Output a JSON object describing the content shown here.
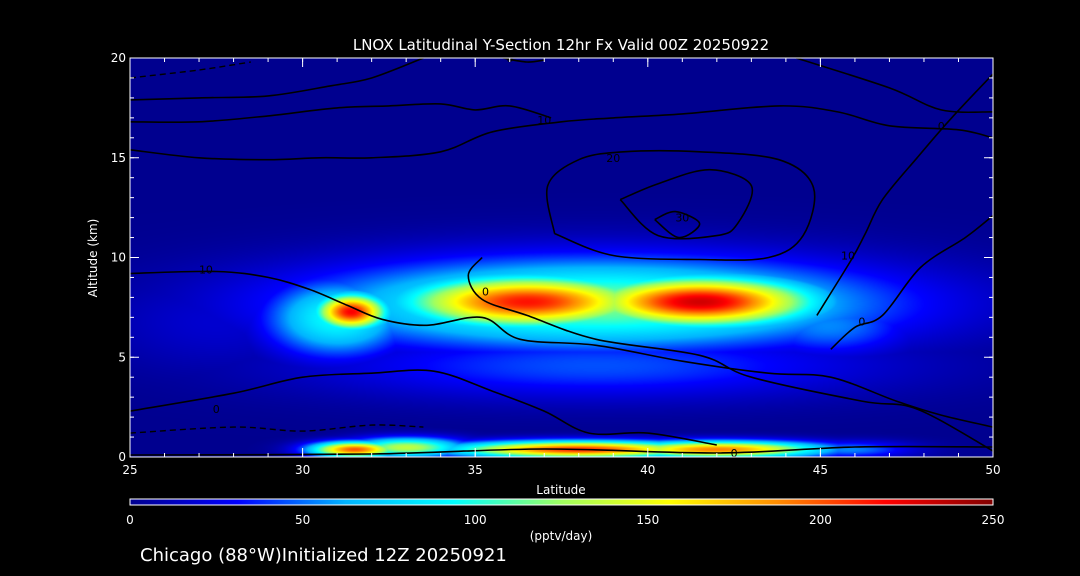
{
  "chart_data": {
    "type": "heatmap",
    "title": "LNOX Latitudinal Y-Section 12hr  Fx Valid 00Z 20250922",
    "xlabel": "Latitude",
    "ylabel": "Altitude (km)",
    "xlim": [
      25,
      50
    ],
    "ylim": [
      0,
      20
    ],
    "x_ticks": [
      25,
      30,
      35,
      40,
      45,
      50
    ],
    "x_tick_labels": [
      "25",
      "30",
      "35",
      "40",
      "45",
      "50"
    ],
    "y_ticks": [
      0,
      5,
      10,
      15,
      20
    ],
    "y_tick_labels": [
      "0",
      "5",
      "10",
      "15",
      "20"
    ],
    "colorbar": {
      "min": 0,
      "max": 250,
      "ticks": [
        0,
        50,
        100,
        150,
        200,
        250
      ],
      "tick_labels": [
        "0",
        "50",
        "100",
        "150",
        "200",
        "250"
      ],
      "units": "(pptv/day)",
      "colormap": [
        "#00008f",
        "#0000ff",
        "#00b4ff",
        "#00ffff",
        "#a0ff60",
        "#ffff00",
        "#ff8c00",
        "#ff0000",
        "#800000"
      ]
    },
    "background_color": "#00008f",
    "blobs": [
      {
        "lat": 31.4,
        "alt": 7.3,
        "slat": 0.75,
        "salt": 0.65,
        "value": 220
      },
      {
        "lat": 31.0,
        "alt": 7.0,
        "slat": 1.5,
        "salt": 1.4,
        "value": 95
      },
      {
        "lat": 36.5,
        "alt": 7.8,
        "slat": 2.6,
        "salt": 0.95,
        "value": 215
      },
      {
        "lat": 41.5,
        "alt": 7.8,
        "slat": 2.4,
        "salt": 0.9,
        "value": 230
      },
      {
        "lat": 38.5,
        "alt": 7.7,
        "slat": 5.8,
        "salt": 1.6,
        "value": 120
      },
      {
        "lat": 45.2,
        "alt": 6.6,
        "slat": 1.8,
        "salt": 1.1,
        "value": 55
      },
      {
        "lat": 38.5,
        "alt": 4.6,
        "slat": 5.8,
        "salt": 1.2,
        "value": 45
      },
      {
        "lat": 27.5,
        "alt": 6.8,
        "slat": 2.5,
        "salt": 1.8,
        "value": 18
      },
      {
        "lat": 33.0,
        "alt": 0.5,
        "slat": 1.2,
        "salt": 0.35,
        "value": 135
      },
      {
        "lat": 31.5,
        "alt": 0.4,
        "slat": 0.9,
        "salt": 0.28,
        "value": 200
      },
      {
        "lat": 38.0,
        "alt": 0.4,
        "slat": 2.6,
        "salt": 0.3,
        "value": 210
      },
      {
        "lat": 42.0,
        "alt": 0.4,
        "slat": 2.2,
        "salt": 0.3,
        "value": 190
      },
      {
        "lat": 45.8,
        "alt": 0.4,
        "slat": 1.3,
        "salt": 0.3,
        "value": 55
      }
    ],
    "contours": [
      {
        "label": "0",
        "label_at": [
          35.3,
          8.3
        ],
        "points": [
          [
            35.2,
            10.0
          ],
          [
            34.8,
            9.1
          ],
          [
            35.2,
            7.9
          ],
          [
            36.5,
            7.1
          ],
          [
            38.5,
            5.9
          ],
          [
            41.5,
            5.1
          ],
          [
            43.0,
            4.0
          ],
          [
            46.2,
            2.8
          ],
          [
            47.8,
            2.4
          ],
          [
            50,
            0.3
          ]
        ]
      },
      {
        "label": "0",
        "label_at": [
          42.5,
          0.2
        ],
        "points": [
          [
            25,
            0.1
          ],
          [
            32,
            0.15
          ],
          [
            37,
            0.4
          ],
          [
            42,
            0.2
          ],
          [
            46,
            0.5
          ],
          [
            50,
            0.5
          ]
        ]
      },
      {
        "label": "0",
        "label_at": [
          27.5,
          2.4
        ],
        "points": [
          [
            25,
            2.3
          ],
          [
            28,
            3.2
          ],
          [
            30,
            4.0
          ],
          [
            32,
            4.2
          ],
          [
            33.8,
            4.3
          ],
          [
            35.5,
            3.3
          ],
          [
            37.0,
            2.3
          ],
          [
            38.3,
            1.2
          ],
          [
            40,
            1.2
          ],
          [
            42,
            0.6
          ]
        ]
      },
      {
        "label": "10",
        "label_at": [
          27.2,
          9.4
        ],
        "points": [
          [
            25,
            9.2
          ],
          [
            27.5,
            9.3
          ],
          [
            29,
            9.0
          ],
          [
            30.2,
            8.4
          ],
          [
            31.3,
            7.6
          ],
          [
            32.3,
            6.9
          ],
          [
            33.6,
            6.6
          ],
          [
            35.2,
            7.0
          ],
          [
            36.3,
            5.9
          ],
          [
            38.5,
            5.6
          ],
          [
            41,
            4.8
          ],
          [
            43.5,
            4.2
          ],
          [
            45.3,
            4.0
          ],
          [
            47.2,
            2.8
          ],
          [
            48.5,
            2.1
          ],
          [
            50,
            1.5
          ]
        ]
      },
      {
        "label": "0",
        "label_at": [
          46.2,
          6.8
        ],
        "points": [
          [
            45.3,
            5.4
          ],
          [
            46.0,
            6.5
          ],
          [
            46.8,
            7.1
          ],
          [
            47.9,
            9.5
          ],
          [
            49.2,
            11.0
          ],
          [
            50,
            12.1
          ]
        ]
      },
      {
        "label": "10",
        "label_at": [
          45.8,
          10.1
        ],
        "points": [
          [
            44.9,
            7.1
          ],
          [
            45.9,
            9.9
          ],
          [
            46.3,
            11.2
          ],
          [
            46.8,
            12.9
          ],
          [
            47.8,
            15.0
          ],
          [
            48.8,
            17.0
          ],
          [
            50,
            19.2
          ]
        ]
      },
      {
        "label": "10",
        "label_at": [
          37.0,
          16.9
        ],
        "points": [
          [
            25,
            15.4
          ],
          [
            27,
            15.0
          ],
          [
            29,
            14.9
          ],
          [
            30.5,
            15.0
          ],
          [
            32,
            15.0
          ],
          [
            34,
            15.3
          ],
          [
            35.5,
            16.3
          ],
          [
            37.5,
            16.8
          ],
          [
            39,
            17.0
          ],
          [
            41,
            17.2
          ],
          [
            43.8,
            17.6
          ],
          [
            45.5,
            17.3
          ],
          [
            47,
            16.6
          ],
          [
            49,
            16.4
          ],
          [
            50,
            16.0
          ]
        ]
      },
      {
        "label": "20",
        "label_at": [
          39.0,
          15.0
        ],
        "points": [
          [
            37.3,
            11.2
          ],
          [
            37.1,
            13.6
          ],
          [
            38.0,
            14.9
          ],
          [
            39.3,
            15.3
          ],
          [
            41.5,
            15.3
          ],
          [
            43.8,
            14.9
          ],
          [
            44.8,
            13.5
          ],
          [
            44.5,
            11.1
          ],
          [
            43.5,
            10.0
          ],
          [
            41.5,
            9.9
          ],
          [
            39.0,
            10.1
          ],
          [
            37.3,
            11.2
          ]
        ]
      },
      {
        "label": "",
        "label_at": null,
        "points": [
          [
            39.2,
            12.9
          ],
          [
            40.3,
            13.7
          ],
          [
            41.8,
            14.4
          ],
          [
            43.0,
            13.6
          ],
          [
            42.6,
            11.7
          ],
          [
            42.0,
            11.1
          ],
          [
            40.3,
            11.1
          ],
          [
            39.2,
            12.9
          ]
        ]
      },
      {
        "label": "30",
        "label_at": [
          41.0,
          12.0
        ],
        "points": [
          [
            40.2,
            11.9
          ],
          [
            40.8,
            12.3
          ],
          [
            41.5,
            11.7
          ],
          [
            40.9,
            11.0
          ],
          [
            40.2,
            11.9
          ]
        ]
      },
      {
        "label": "0",
        "label_at": [
          36.0,
          20.0
        ],
        "points": [
          [
            25,
            17.9
          ],
          [
            27,
            18.0
          ],
          [
            29,
            18.1
          ],
          [
            30.8,
            18.6
          ],
          [
            32.0,
            19.0
          ],
          [
            33.5,
            20.0
          ]
        ]
      },
      {
        "label": "",
        "label_at": null,
        "points": [
          [
            25,
            16.8
          ],
          [
            27,
            16.8
          ],
          [
            29,
            17.1
          ],
          [
            31,
            17.5
          ],
          [
            32.5,
            17.6
          ],
          [
            34.0,
            17.7
          ],
          [
            35.0,
            17.4
          ],
          [
            36.0,
            17.6
          ],
          [
            37.2,
            17.0
          ]
        ]
      },
      {
        "label": "0",
        "label_at": [
          48.5,
          16.6
        ],
        "points": [
          [
            44.3,
            20.0
          ],
          [
            47.0,
            18.5
          ],
          [
            48.5,
            17.4
          ],
          [
            50,
            17.3
          ]
        ]
      },
      {
        "label": "",
        "label_at": null,
        "points": [
          [
            35.8,
            20.0
          ],
          [
            36.5,
            19.8
          ],
          [
            37.0,
            19.9
          ]
        ]
      }
    ],
    "dashed_contours": [
      {
        "points": [
          [
            25,
            1.2
          ],
          [
            28,
            1.5
          ],
          [
            30,
            1.3
          ],
          [
            32,
            1.6
          ],
          [
            33.5,
            1.5
          ]
        ]
      },
      {
        "points": [
          [
            25,
            19.0
          ],
          [
            27,
            19.4
          ],
          [
            28.5,
            19.8
          ]
        ]
      }
    ]
  },
  "footer": {
    "initialized_text": "Chicago (88°W)Initialized 12Z 20250921"
  }
}
